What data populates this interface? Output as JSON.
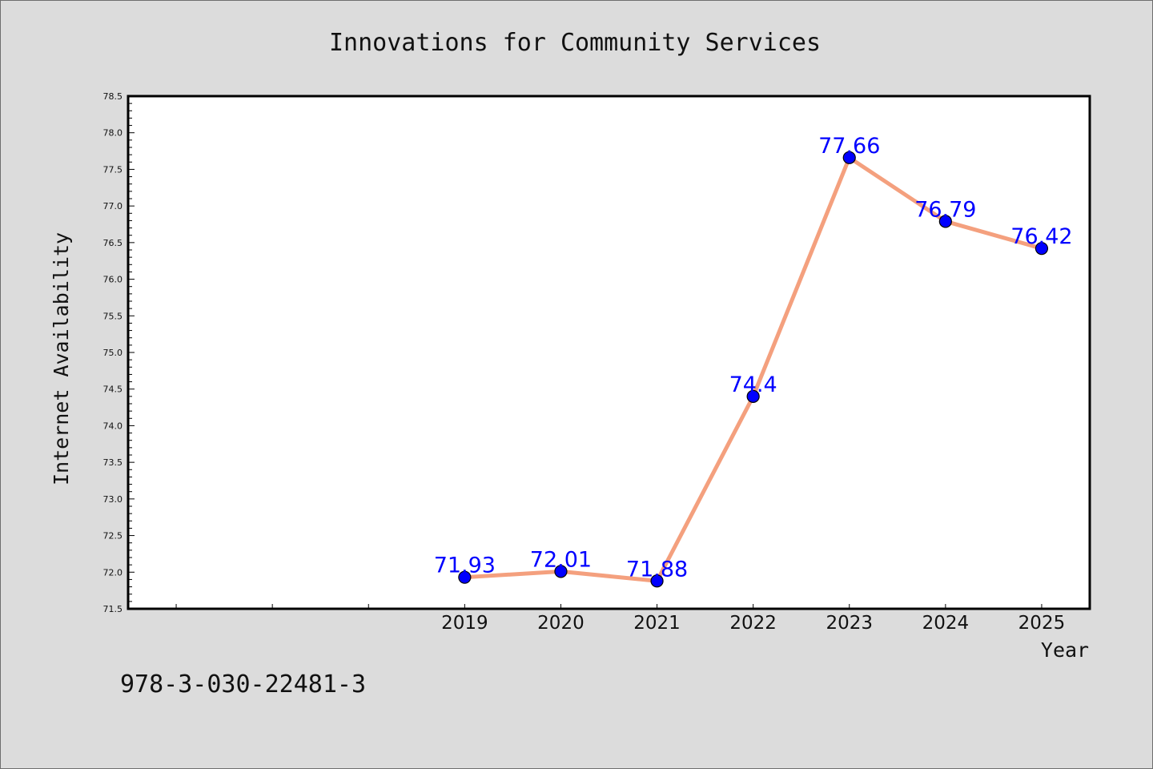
{
  "chart_data": {
    "type": "line",
    "title": "Innovations for Community Services",
    "xlabel": "Year",
    "ylabel": "Internet Availability",
    "categories": [
      "2019",
      "2020",
      "2021",
      "2022",
      "2023",
      "2024",
      "2025"
    ],
    "x": [
      2019,
      2020,
      2021,
      2022,
      2023,
      2024,
      2025
    ],
    "values": [
      71.93,
      72.01,
      71.88,
      74.4,
      77.66,
      76.79,
      76.42
    ],
    "data_labels": [
      "71.93",
      "72.01",
      "71.88",
      "74.4",
      "77.66",
      "76.79",
      "76.42"
    ],
    "ylim": [
      71.5,
      78.5
    ],
    "xlim": [
      2015.5,
      2025.5
    ],
    "yticks": [
      "71.5",
      "72.0",
      "72.5",
      "73.0",
      "73.5",
      "74.0",
      "74.5",
      "75.0",
      "75.5",
      "76.0",
      "76.5",
      "77.0",
      "77.5",
      "78.0",
      "78.5"
    ],
    "grid": false,
    "legend": "none",
    "colors": {
      "line": "#f4a07e",
      "marker": "#0000ff",
      "data_label": "#0000ff",
      "background": "#dcdcdc",
      "plot_background": "#ffffff"
    }
  },
  "footer": {
    "identifier": "978-3-030-22481-3"
  }
}
